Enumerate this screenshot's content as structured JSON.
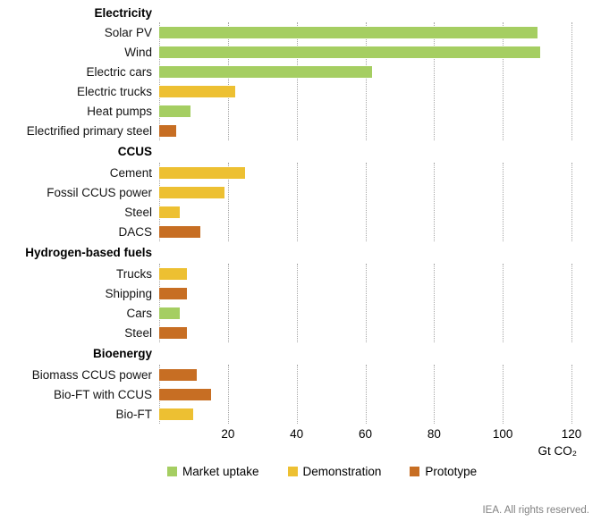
{
  "chart_data": {
    "type": "bar",
    "orientation": "horizontal",
    "unit_label": "Gt CO₂",
    "x_axis": {
      "min": 0,
      "max": 120,
      "ticks": [
        20,
        40,
        60,
        80,
        100,
        120
      ],
      "gridlines": "dotted"
    },
    "legend": [
      {
        "label": "Market uptake",
        "color": "#a5ce62"
      },
      {
        "label": "Demonstration",
        "color": "#edc032"
      },
      {
        "label": "Prototype",
        "color": "#c76e23"
      }
    ],
    "sections": [
      {
        "header": "Electricity",
        "rows": [
          {
            "label": "Solar PV",
            "value": 110,
            "category": "Market uptake"
          },
          {
            "label": "Wind",
            "value": 111,
            "category": "Market uptake"
          },
          {
            "label": "Electric cars",
            "value": 62,
            "category": "Market uptake"
          },
          {
            "label": "Electric trucks",
            "value": 22,
            "category": "Demonstration"
          },
          {
            "label": "Heat pumps",
            "value": 9,
            "category": "Market uptake"
          },
          {
            "label": "Electrified primary steel",
            "value": 5,
            "category": "Prototype"
          }
        ]
      },
      {
        "header": "CCUS",
        "rows": [
          {
            "label": "Cement",
            "value": 25,
            "category": "Demonstration"
          },
          {
            "label": "Fossil CCUS power",
            "value": 19,
            "category": "Demonstration"
          },
          {
            "label": "Steel",
            "value": 6,
            "category": "Demonstration"
          },
          {
            "label": "DACS",
            "value": 12,
            "category": "Prototype"
          }
        ]
      },
      {
        "header": "Hydrogen-based fuels",
        "rows": [
          {
            "label": "Trucks",
            "value": 8,
            "category": "Demonstration"
          },
          {
            "label": "Shipping",
            "value": 8,
            "category": "Prototype"
          },
          {
            "label": "Cars",
            "value": 6,
            "category": "Market uptake"
          },
          {
            "label": "Steel",
            "value": 8,
            "category": "Prototype"
          }
        ]
      },
      {
        "header": "Bioenergy",
        "rows": [
          {
            "label": "Biomass CCUS power",
            "value": 11,
            "category": "Prototype"
          },
          {
            "label": "Bio-FT with CCUS",
            "value": 15,
            "category": "Prototype"
          },
          {
            "label": "Bio-FT",
            "value": 10,
            "category": "Demonstration"
          }
        ]
      }
    ]
  },
  "footer": {
    "credit": "IEA. All rights reserved."
  }
}
